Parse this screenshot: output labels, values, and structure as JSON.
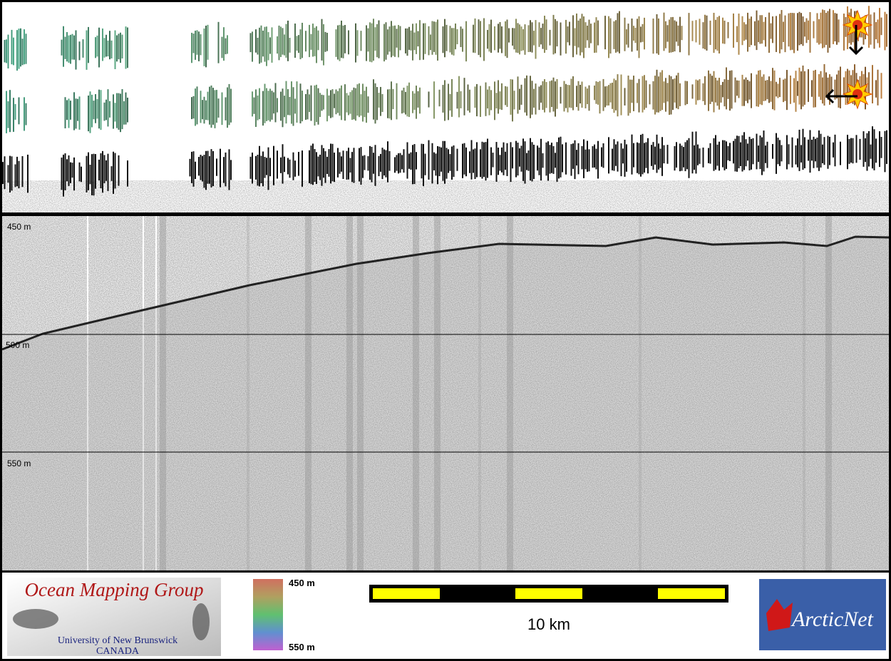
{
  "profile": {
    "depth_labels": [
      "450 m",
      "500 m",
      "550 m"
    ]
  },
  "footer": {
    "logo": {
      "title": "Ocean Mapping Group",
      "university": "University of New Brunswick",
      "country": "CANADA"
    },
    "colorbar": {
      "top_label": "450 m",
      "bottom_label": "550 m"
    },
    "scale": {
      "label": "10 km"
    },
    "partner": {
      "name": "ArcticNet"
    }
  }
}
